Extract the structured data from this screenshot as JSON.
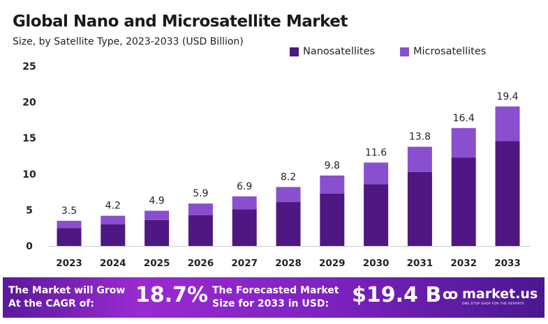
{
  "chart_data": {
    "type": "bar",
    "stacked": true,
    "title": "Global Nano and Microsatellite Market",
    "subtitle": "Size, by Satellite Type, 2023-2033  (USD Billion)",
    "categories": [
      "2023",
      "2024",
      "2025",
      "2026",
      "2027",
      "2028",
      "2029",
      "2030",
      "2031",
      "2032",
      "2033"
    ],
    "series": [
      {
        "name": "Nanosatellites",
        "color": "#4e1782",
        "values": [
          2.5,
          3.0,
          3.6,
          4.3,
          5.1,
          6.1,
          7.3,
          8.6,
          10.3,
          12.3,
          14.6
        ]
      },
      {
        "name": "Microsatellites",
        "color": "#8a4fcf",
        "values": [
          1.0,
          1.2,
          1.3,
          1.6,
          1.8,
          2.1,
          2.5,
          3.0,
          3.5,
          4.1,
          4.8
        ]
      }
    ],
    "totals": [
      "3.5",
      "4.2",
      "4.9",
      "5.9",
      "6.9",
      "8.2",
      "9.8",
      "11.6",
      "13.8",
      "16.4",
      "19.4"
    ],
    "yticks": [
      "0",
      "5",
      "10",
      "15",
      "20",
      "25"
    ],
    "ylim": [
      0,
      25
    ],
    "grid": false,
    "legend": "top-right"
  },
  "footer": {
    "cagr_label_1": "The Market will Grow",
    "cagr_label_2": "At the CAGR of:",
    "cagr_value": "18.7%",
    "forecast_label_1": "The Forecasted Market",
    "forecast_label_2": "Size for 2033 in USD:",
    "forecast_value": "$19.4 B",
    "logo_text": "market.us",
    "logo_tagline": "ONE STOP SHOP FOR THE REPORTS"
  }
}
